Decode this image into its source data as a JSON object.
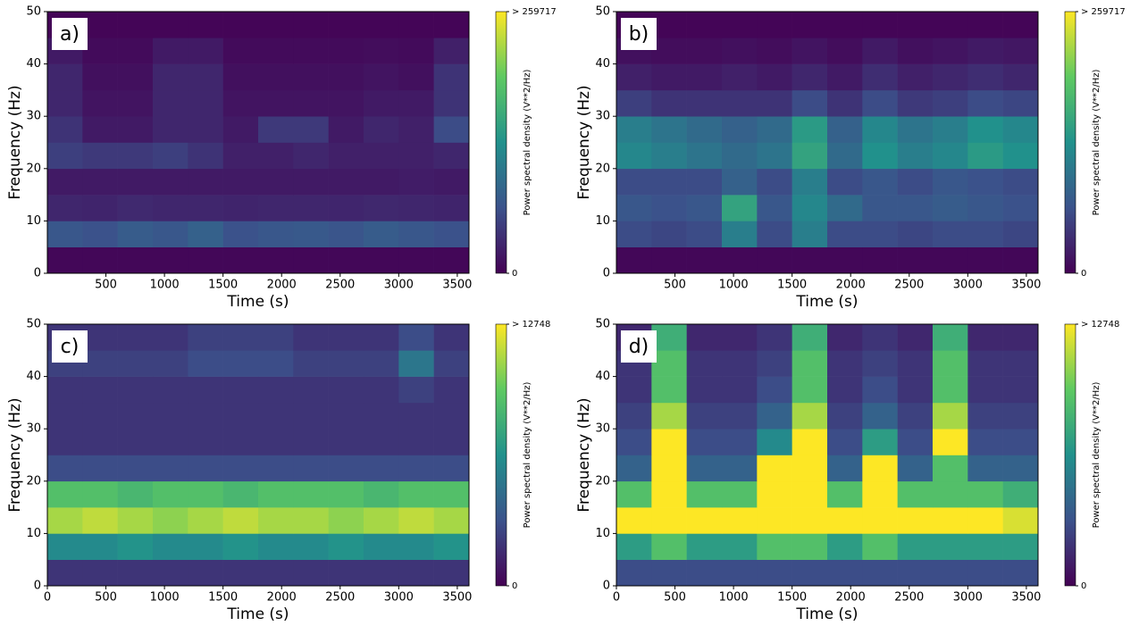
{
  "chart_data": [
    {
      "type": "heatmap",
      "panel_label": "a)",
      "xlabel": "Time (s)",
      "ylabel": "Frequency (Hz)",
      "colorbar_label": "Power spectral density (V**2/Hz)",
      "colormap": "viridis",
      "xlim": [
        0,
        3600
      ],
      "xticks": [
        500,
        1000,
        1500,
        2000,
        2500,
        3000,
        3500
      ],
      "ylim": [
        0,
        50
      ],
      "yticks": [
        0,
        10,
        20,
        30,
        40,
        50
      ],
      "clim": [
        0,
        259717
      ],
      "colorbar_ticks": [
        0,
        {
          "value": 259717,
          "label": "> 259717"
        }
      ],
      "xbins": [
        0,
        300,
        600,
        900,
        1200,
        1500,
        1800,
        2100,
        2400,
        2700,
        3000,
        3300,
        3600
      ],
      "ybins": [
        0,
        5,
        10,
        15,
        20,
        25,
        30,
        35,
        40,
        45,
        50
      ],
      "values": [
        [
          5000,
          5000,
          5000,
          5000,
          5000,
          5000,
          5000,
          5000,
          5000,
          5000,
          5000,
          5000
        ],
        [
          70000,
          65000,
          75000,
          70000,
          80000,
          65000,
          70000,
          72000,
          68000,
          75000,
          70000,
          65000
        ],
        [
          30000,
          28000,
          32000,
          30000,
          30000,
          28000,
          30000,
          30000,
          29000,
          31000,
          30000,
          28000
        ],
        [
          20000,
          20000,
          20000,
          20000,
          20000,
          20000,
          20000,
          20000,
          20000,
          20000,
          22000,
          20000
        ],
        [
          50000,
          45000,
          45000,
          50000,
          40000,
          25000,
          25000,
          30000,
          25000,
          25000,
          25000,
          30000
        ],
        [
          40000,
          20000,
          20000,
          30000,
          30000,
          20000,
          45000,
          45000,
          20000,
          30000,
          25000,
          60000
        ],
        [
          30000,
          15000,
          15000,
          30000,
          30000,
          15000,
          15000,
          15000,
          15000,
          20000,
          20000,
          40000
        ],
        [
          30000,
          12000,
          12000,
          30000,
          30000,
          12000,
          12000,
          12000,
          12000,
          15000,
          12000,
          40000
        ],
        [
          20000,
          8000,
          8000,
          20000,
          20000,
          8000,
          8000,
          8000,
          8000,
          10000,
          8000,
          25000
        ],
        [
          3000,
          3000,
          3000,
          3000,
          3000,
          3000,
          3000,
          3000,
          3000,
          3000,
          3000,
          3000
        ]
      ]
    },
    {
      "type": "heatmap",
      "panel_label": "b)",
      "xlabel": "Time (s)",
      "ylabel": "Frequency (Hz)",
      "colorbar_label": "Power spectral density (V**2/Hz)",
      "colormap": "viridis",
      "xlim": [
        0,
        3600
      ],
      "xticks": [
        500,
        1000,
        1500,
        2000,
        2500,
        3000,
        3500
      ],
      "ylim": [
        0,
        50
      ],
      "yticks": [
        0,
        10,
        20,
        30,
        40,
        50
      ],
      "clim": [
        0,
        259717
      ],
      "colorbar_ticks": [
        0,
        {
          "value": 259717,
          "label": "> 259717"
        }
      ],
      "xbins": [
        0,
        300,
        600,
        900,
        1200,
        1500,
        1800,
        2100,
        2400,
        2700,
        3000,
        3300,
        3600
      ],
      "ybins": [
        0,
        5,
        10,
        15,
        20,
        25,
        30,
        35,
        40,
        45,
        50
      ],
      "values": [
        [
          5000,
          5000,
          5000,
          5000,
          5000,
          5000,
          5000,
          5000,
          5000,
          5000,
          5000,
          5000
        ],
        [
          60000,
          55000,
          60000,
          110000,
          60000,
          110000,
          60000,
          60000,
          55000,
          60000,
          60000,
          55000
        ],
        [
          70000,
          65000,
          70000,
          150000,
          70000,
          120000,
          90000,
          70000,
          70000,
          75000,
          70000,
          65000
        ],
        [
          60000,
          60000,
          60000,
          80000,
          60000,
          110000,
          60000,
          70000,
          60000,
          70000,
          65000,
          60000
        ],
        [
          120000,
          110000,
          100000,
          90000,
          100000,
          150000,
          90000,
          130000,
          110000,
          120000,
          140000,
          130000
        ],
        [
          110000,
          100000,
          90000,
          80000,
          90000,
          140000,
          80000,
          120000,
          100000,
          110000,
          130000,
          120000
        ],
        [
          50000,
          40000,
          40000,
          40000,
          40000,
          60000,
          40000,
          60000,
          45000,
          50000,
          60000,
          55000
        ],
        [
          25000,
          20000,
          20000,
          25000,
          20000,
          30000,
          20000,
          35000,
          25000,
          30000,
          35000,
          30000
        ],
        [
          12000,
          10000,
          10000,
          12000,
          10000,
          15000,
          10000,
          20000,
          12000,
          15000,
          20000,
          18000
        ],
        [
          3000,
          3000,
          3000,
          3000,
          3000,
          3000,
          3000,
          3000,
          3000,
          3000,
          3000,
          3000
        ]
      ]
    },
    {
      "type": "heatmap",
      "panel_label": "c)",
      "xlabel": "Time (s)",
      "ylabel": "Frequency (Hz)",
      "colorbar_label": "Power spectral density (V**2/Hz)",
      "colormap": "viridis",
      "xlim": [
        0,
        3600
      ],
      "xticks": [
        0,
        500,
        1000,
        1500,
        2000,
        2500,
        3000,
        3500
      ],
      "ylim": [
        0,
        50
      ],
      "yticks": [
        0,
        10,
        20,
        30,
        40,
        50
      ],
      "clim": [
        0,
        12748
      ],
      "colorbar_ticks": [
        0,
        {
          "value": 12748,
          "label": "> 12748"
        }
      ],
      "xbins": [
        0,
        300,
        600,
        900,
        1200,
        1500,
        1800,
        2100,
        2400,
        2700,
        3000,
        3300,
        3600
      ],
      "ybins": [
        0,
        5,
        10,
        15,
        20,
        25,
        30,
        35,
        40,
        45,
        50
      ],
      "values": [
        [
          2000,
          2000,
          2000,
          2000,
          2000,
          2000,
          2000,
          2000,
          2000,
          2000,
          2000,
          2000
        ],
        [
          6000,
          6000,
          6500,
          6000,
          6000,
          6500,
          6000,
          6000,
          6500,
          6000,
          6000,
          6500
        ],
        [
          11000,
          11500,
          11000,
          10500,
          11000,
          11500,
          11000,
          11000,
          10500,
          11000,
          11500,
          11000
        ],
        [
          9000,
          9000,
          8500,
          9000,
          9000,
          8500,
          9000,
          9000,
          9000,
          8500,
          9000,
          9000
        ],
        [
          3000,
          3000,
          3000,
          3000,
          3000,
          3000,
          3000,
          3000,
          3000,
          3000,
          3000,
          3000
        ],
        [
          2000,
          2000,
          2000,
          2000,
          2000,
          2000,
          2000,
          2000,
          2000,
          2000,
          2000,
          2000
        ],
        [
          2000,
          2000,
          2000,
          2000,
          2000,
          2000,
          2000,
          2000,
          2000,
          2000,
          2000,
          2000
        ],
        [
          2000,
          2000,
          2000,
          2000,
          2000,
          2000,
          2000,
          2000,
          2000,
          2000,
          2500,
          2000
        ],
        [
          2500,
          2500,
          2500,
          2500,
          3000,
          3000,
          3000,
          2500,
          2500,
          2500,
          5000,
          2500
        ],
        [
          2000,
          2000,
          2000,
          2000,
          2500,
          2500,
          2500,
          2000,
          2000,
          2000,
          3000,
          2000
        ]
      ]
    },
    {
      "type": "heatmap",
      "panel_label": "d)",
      "xlabel": "Time (s)",
      "ylabel": "Frequency (Hz)",
      "colorbar_label": "Power spectral density (V**2/Hz)",
      "colormap": "viridis",
      "xlim": [
        0,
        3600
      ],
      "xticks": [
        0,
        500,
        1000,
        1500,
        2000,
        2500,
        3000,
        3500
      ],
      "ylim": [
        0,
        50
      ],
      "yticks": [
        0,
        10,
        20,
        30,
        40,
        50
      ],
      "clim": [
        0,
        12748
      ],
      "colorbar_ticks": [
        0,
        {
          "value": 12748,
          "label": "> 12748"
        }
      ],
      "xbins": [
        0,
        300,
        600,
        900,
        1200,
        1500,
        1800,
        2100,
        2400,
        2700,
        3000,
        3300,
        3600
      ],
      "ybins": [
        0,
        5,
        10,
        15,
        20,
        25,
        30,
        35,
        40,
        45,
        50
      ],
      "values": [
        [
          3000,
          3000,
          3000,
          3000,
          3000,
          3000,
          3000,
          3000,
          3000,
          3000,
          3000,
          3000
        ],
        [
          7000,
          9000,
          7000,
          7000,
          9000,
          9000,
          7000,
          9000,
          7000,
          7000,
          7000,
          7000
        ],
        [
          13000,
          13000,
          13000,
          13000,
          13000,
          13000,
          13000,
          13000,
          13000,
          13000,
          13000,
          12000
        ],
        [
          9000,
          13000,
          9000,
          9000,
          13000,
          13000,
          9000,
          13000,
          9000,
          9000,
          9000,
          8000
        ],
        [
          4000,
          13000,
          4000,
          4000,
          13000,
          13000,
          4000,
          13000,
          4000,
          9000,
          4000,
          4000
        ],
        [
          3000,
          13000,
          3000,
          3000,
          6000,
          13000,
          3000,
          7000,
          3000,
          13000,
          3000,
          3000
        ],
        [
          2500,
          11000,
          2500,
          2500,
          4000,
          11000,
          2500,
          4000,
          2500,
          11000,
          2500,
          2500
        ],
        [
          2000,
          9000,
          2000,
          2000,
          3000,
          9000,
          2000,
          3000,
          2000,
          9000,
          2000,
          2000
        ],
        [
          2000,
          9000,
          2000,
          2000,
          2500,
          9000,
          2000,
          2500,
          2000,
          9000,
          2000,
          2000
        ],
        [
          1500,
          8000,
          1500,
          1500,
          2000,
          8000,
          1500,
          2000,
          1500,
          8000,
          1500,
          1500
        ]
      ]
    }
  ]
}
